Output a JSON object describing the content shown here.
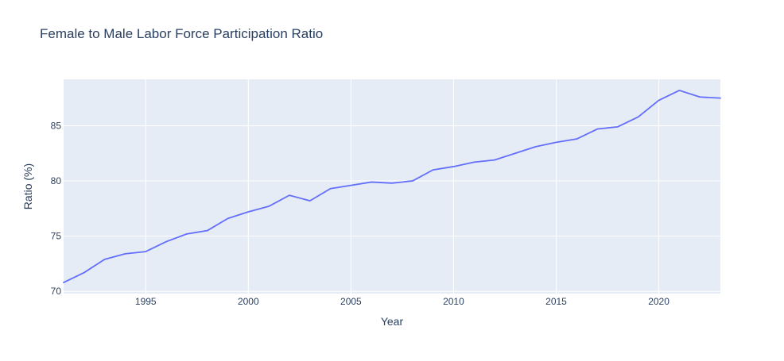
{
  "chart_data": {
    "type": "line",
    "title": "Female to Male Labor Force Participation Ratio",
    "xlabel": "Year",
    "ylabel": "Ratio (%)",
    "xlim": [
      1991,
      2023
    ],
    "ylim": [
      69.8,
      89.2
    ],
    "xticks": [
      1995,
      2000,
      2005,
      2010,
      2015,
      2020
    ],
    "yticks": [
      70,
      75,
      80,
      85
    ],
    "grid": true,
    "legend": "none",
    "colors": {
      "line": "#636efa",
      "plot_bg": "#e5ecf6",
      "grid": "#ffffff",
      "text": "#2a3f5f"
    },
    "series": [
      {
        "x": [
          1991,
          1992,
          1993,
          1994,
          1995,
          1996,
          1997,
          1998,
          1999,
          2000,
          2001,
          2002,
          2003,
          2004,
          2005,
          2006,
          2007,
          2008,
          2009,
          2010,
          2011,
          2012,
          2013,
          2014,
          2015,
          2016,
          2017,
          2018,
          2019,
          2020,
          2021,
          2022,
          2023
        ],
        "values": [
          70.8,
          71.7,
          72.9,
          73.4,
          73.6,
          74.5,
          75.2,
          75.5,
          76.6,
          77.2,
          77.7,
          78.7,
          78.2,
          79.3,
          79.6,
          79.9,
          79.8,
          80.0,
          81.0,
          81.3,
          81.7,
          81.9,
          82.5,
          83.1,
          83.5,
          83.8,
          84.7,
          84.9,
          85.8,
          87.3,
          88.2,
          87.6,
          87.5
        ]
      }
    ]
  }
}
